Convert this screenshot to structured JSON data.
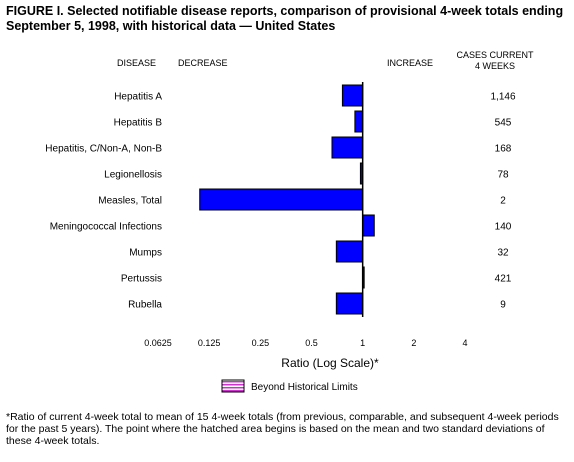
{
  "chart_data": {
    "type": "bar",
    "orientation": "horizontal",
    "title": "FIGURE I. Selected notifiable disease reports, comparison of provisional 4-week totals ending September 5, 1998, with historical data — United States",
    "column_headers": {
      "disease": "DISEASE",
      "decrease": "DECREASE",
      "increase": "INCREASE",
      "cases": "CASES CURRENT",
      "cases_sub": "4 WEEKS"
    },
    "categories": [
      "Hepatitis A",
      "Hepatitis B",
      "Hepatitis, C/Non-A, Non-B",
      "Legionellosis",
      "Measles, Total",
      "Meningococcal Infections",
      "Mumps",
      "Pertussis",
      "Rubella"
    ],
    "values": [
      0.76,
      0.9,
      0.66,
      0.97,
      0.11,
      1.17,
      0.7,
      1.01,
      0.7
    ],
    "cases_current_4_weeks": [
      "1,146",
      "545",
      "168",
      "78",
      "2",
      "140",
      "32",
      "421",
      "9"
    ],
    "xscale": "log2",
    "xlim": [
      0.0625,
      4
    ],
    "xticks": [
      0.0625,
      0.125,
      0.25,
      0.5,
      1,
      2,
      4
    ],
    "xtick_labels": [
      "0.0625",
      "0.125",
      "0.25",
      "0.5",
      "1",
      "2",
      "4"
    ],
    "xlabel": "Ratio (Log Scale)*",
    "legend": {
      "label": "Beyond Historical Limits",
      "placement": "bottom-center"
    },
    "bar_color": "#0000ff",
    "hatch_color": "#cc33cc",
    "grid": false
  },
  "footnote": "*Ratio of current 4-week total to mean of 15 4-week totals (from previous, comparable, and subsequent 4-week periods for the past 5 years). The point where the hatched area begins is based on the mean and two standard deviations of these 4-week totals."
}
